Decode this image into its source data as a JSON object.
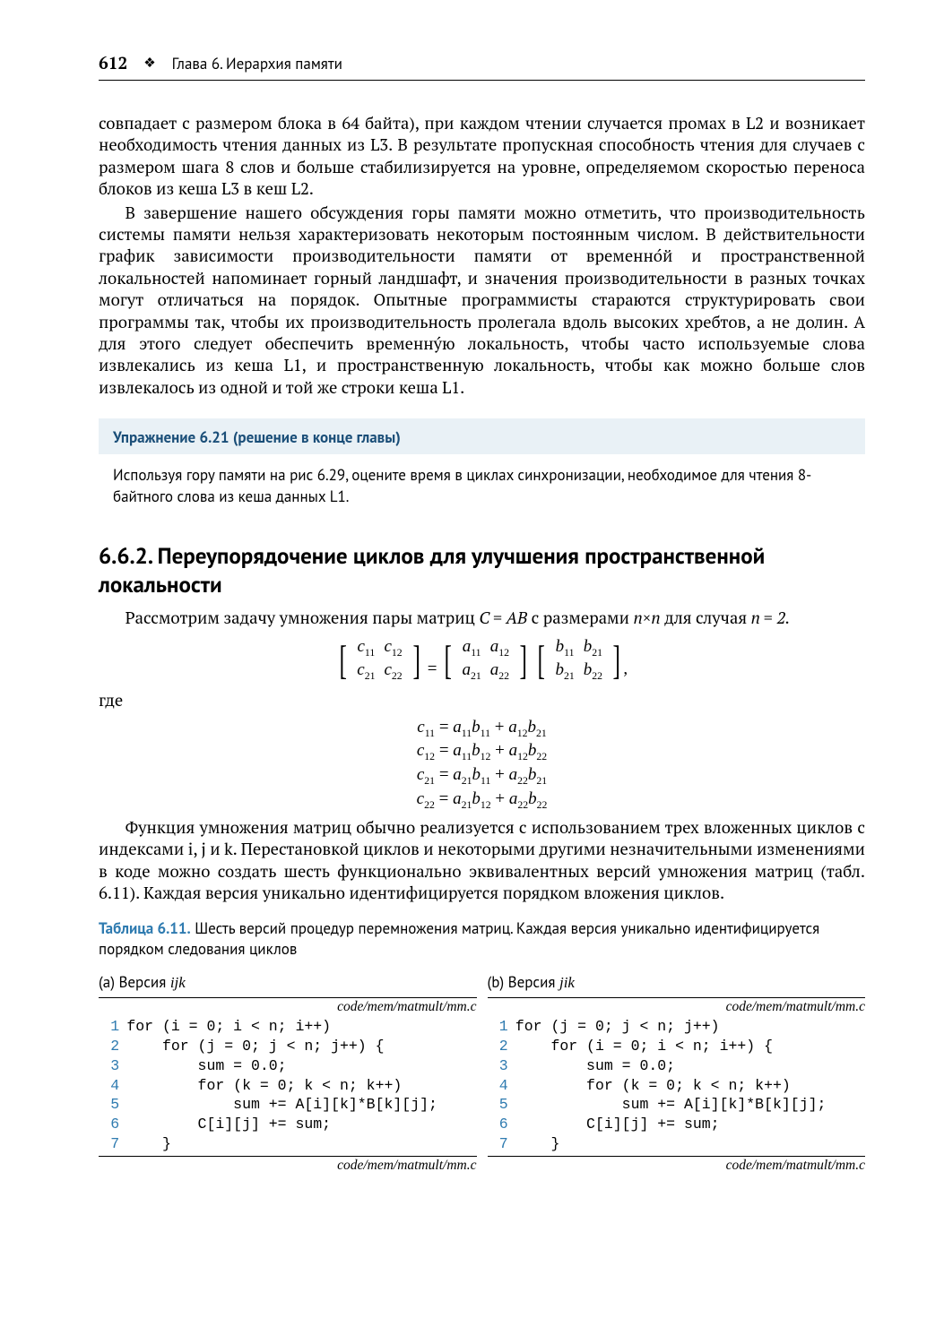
{
  "header": {
    "page_number": "612",
    "chapter": "Глава 6. Иерархия памяти"
  },
  "paragraphs": {
    "p1": "совпадает с размером блока в 64 байта), при каждом чтении случается промах в L2 и возникает необходимость чтения данных из L3. В результате пропускная способность чтения для случаев с размером шага 8 слов и больше стабилизируется на уровне, определяемом скоростью переноса блоков из кеша L3 в кеш L2.",
    "p2": "В завершение нашего обсуждения горы памяти можно отметить, что производительность системы памяти нельзя характеризовать некоторым постоянным числом. В действительности график зависимости производительности памяти от временно́й и пространственной локальностей напоминает горный ландшафт, и значения производительности в разных точках могут отличаться на порядок. Опытные программисты стараются структурировать свои программы так, чтобы их производительность пролегала вдоль высоких хребтов, а не долин. А для этого следует обеспечить временну́ю локальность, чтобы часто используемые слова извлекались из кеша L1, и пространственную локальность, чтобы как можно больше слов извлекалось из одной и той же строки кеша L1.",
    "p3_lead": "Рассмотрим задачу умножения пары матриц ",
    "p3_tail": " для случая ",
    "p4": "Функция умножения матриц обычно реализуется с использованием трех вложенных циклов с индексами i, j и k. Перестановкой циклов и некоторыми другими незначительными изменениями в коде можно создать шесть функционально эквивалентных версий умножения матриц (табл. 6.11). Каждая версия уникально идентифицируется порядком вложения циклов."
  },
  "exercise": {
    "title": "Упражнение 6.21 (решение в конце главы)",
    "body": "Используя гору памяти на рис 6.29, оцените время в циклах синхронизации, необходимое для чтения 8-байтного слова из кеша данных L1."
  },
  "section": {
    "number": "6.6.2.",
    "title": "Переупорядочение циклов для улучшения пространственной локальности"
  },
  "where": "где",
  "math": {
    "cab": "C = AB",
    "dims": "n×n",
    "neq": "n = 2.",
    "eq1": "c₁₁ = a₁₁b₁₁ + a₁₂b₂₁",
    "eq2": "c₁₂ = a₁₁b₁₂ + a₁₂b₂₂",
    "eq3": "c₂₁ = a₂₁b₁₁ + a₂₂b₂₁",
    "eq4": "c₂₂ = a₂₁b₁₂ + a₂₂b₂₂"
  },
  "table_caption": {
    "label": "Таблица 6.11.",
    "text": " Шесть версий процедур перемножения матриц. Каждая версия уникально идентифицируется порядком следования циклов"
  },
  "listings": {
    "a": {
      "title_prefix": "(a) Версия ",
      "title_ver": "ijk",
      "path": "code/mem/matmult/mm.c",
      "lines": [
        "for (i = 0; i < n; i++)",
        "    for (j = 0; j < n; j++) {",
        "        sum = 0.0;",
        "        for (k = 0; k < n; k++)",
        "            sum += A[i][k]*B[k][j];",
        "        C[i][j] += sum;",
        "    }"
      ]
    },
    "b": {
      "title_prefix": "(b) Версия ",
      "title_ver": "jik",
      "path": "code/mem/matmult/mm.c",
      "lines": [
        "for (j = 0; j < n; j++)",
        "    for (i = 0; i < n; i++) {",
        "        sum = 0.0;",
        "        for (k = 0; k < n; k++)",
        "            sum += A[i][k]*B[k][j];",
        "        C[i][j] += sum;",
        "    }"
      ]
    }
  },
  "colors": {
    "accent": "#2f7bb0",
    "exercise_bg": "#e9f1f6",
    "exercise_text": "#1a4e78"
  }
}
